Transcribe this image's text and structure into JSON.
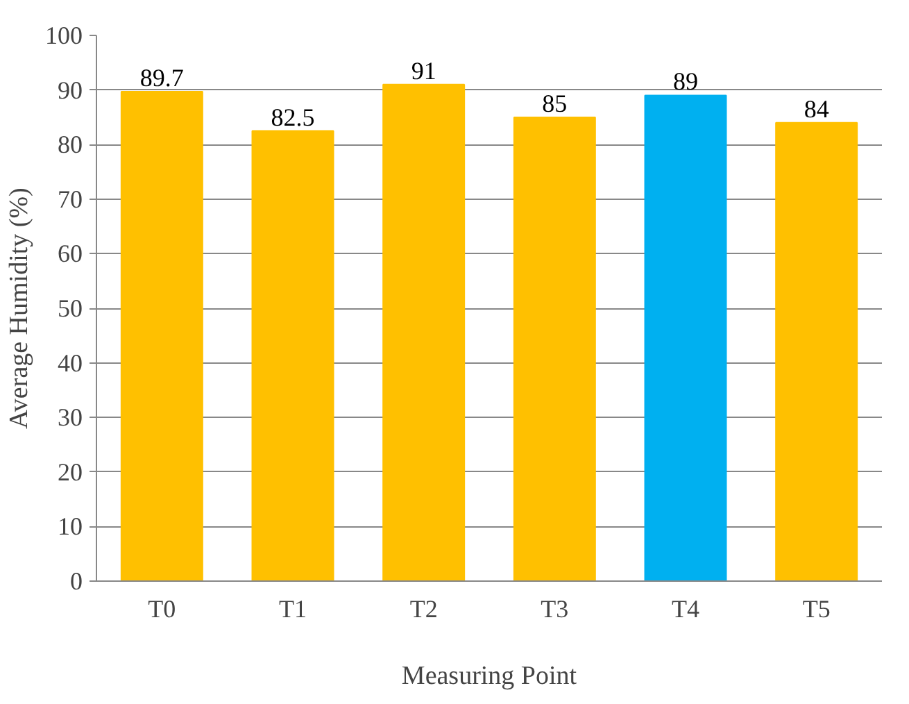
{
  "chart_data": {
    "type": "bar",
    "xlabel": "Measuring Point",
    "ylabel": "Average Humidity (%)",
    "categories": [
      "T0",
      "T1",
      "T2",
      "T3",
      "T4",
      "T5"
    ],
    "values": [
      89.7,
      82.5,
      91,
      85,
      89,
      84
    ],
    "colors": [
      "#ffc000",
      "#ffc000",
      "#ffc000",
      "#ffc000",
      "#00b0f0",
      "#ffc000"
    ],
    "ylim": [
      0,
      100
    ],
    "yticks": [
      0,
      10,
      20,
      30,
      40,
      50,
      60,
      70,
      80,
      90,
      100
    ],
    "grid": "y",
    "data_labels": true
  }
}
